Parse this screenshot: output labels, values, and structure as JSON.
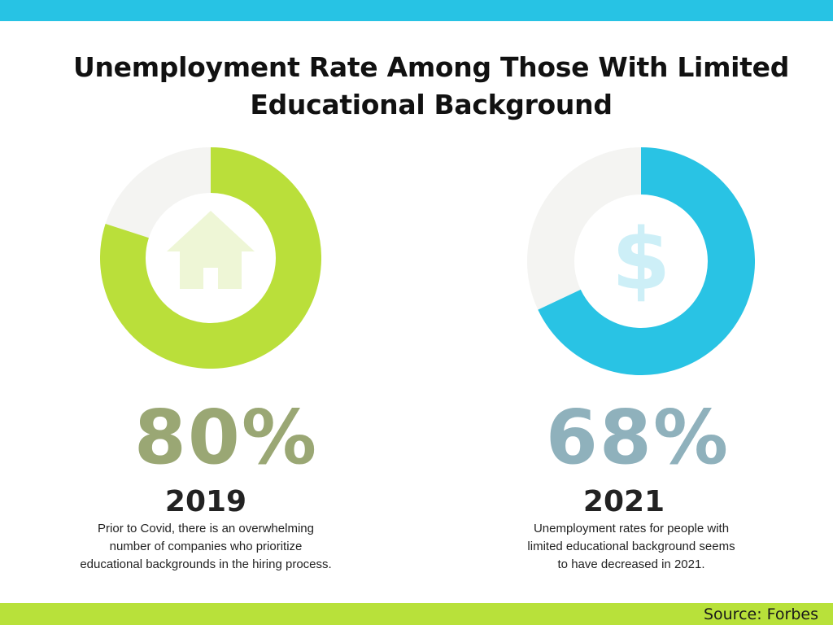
{
  "title_line1": "Unemployment Rate Among Those With Limited",
  "title_line2": "Educational Background",
  "source": "Source: Forbes",
  "colors": {
    "top_bar": "#27C3E4",
    "bottom_bar": "#B8E13A",
    "remainder": "#F4F4F2",
    "green": "#BADF3A",
    "blue": "#29C3E4",
    "pct_green": "#9AA774",
    "pct_blue": "#8FB1BC"
  },
  "chart_data": [
    {
      "type": "pie",
      "year": "2019",
      "label": "80%",
      "value": 80,
      "icon": "house-icon",
      "description": [
        "Prior to Covid, there is an overwhelming",
        "number of companies who prioritize",
        "educational backgrounds in the hiring process."
      ]
    },
    {
      "type": "pie",
      "year": "2021",
      "label": "68%",
      "value": 68,
      "icon": "dollar-icon",
      "description": [
        "Unemployment rates for people with",
        "limited educational background seems",
        "to have decreased in 2021."
      ]
    }
  ]
}
